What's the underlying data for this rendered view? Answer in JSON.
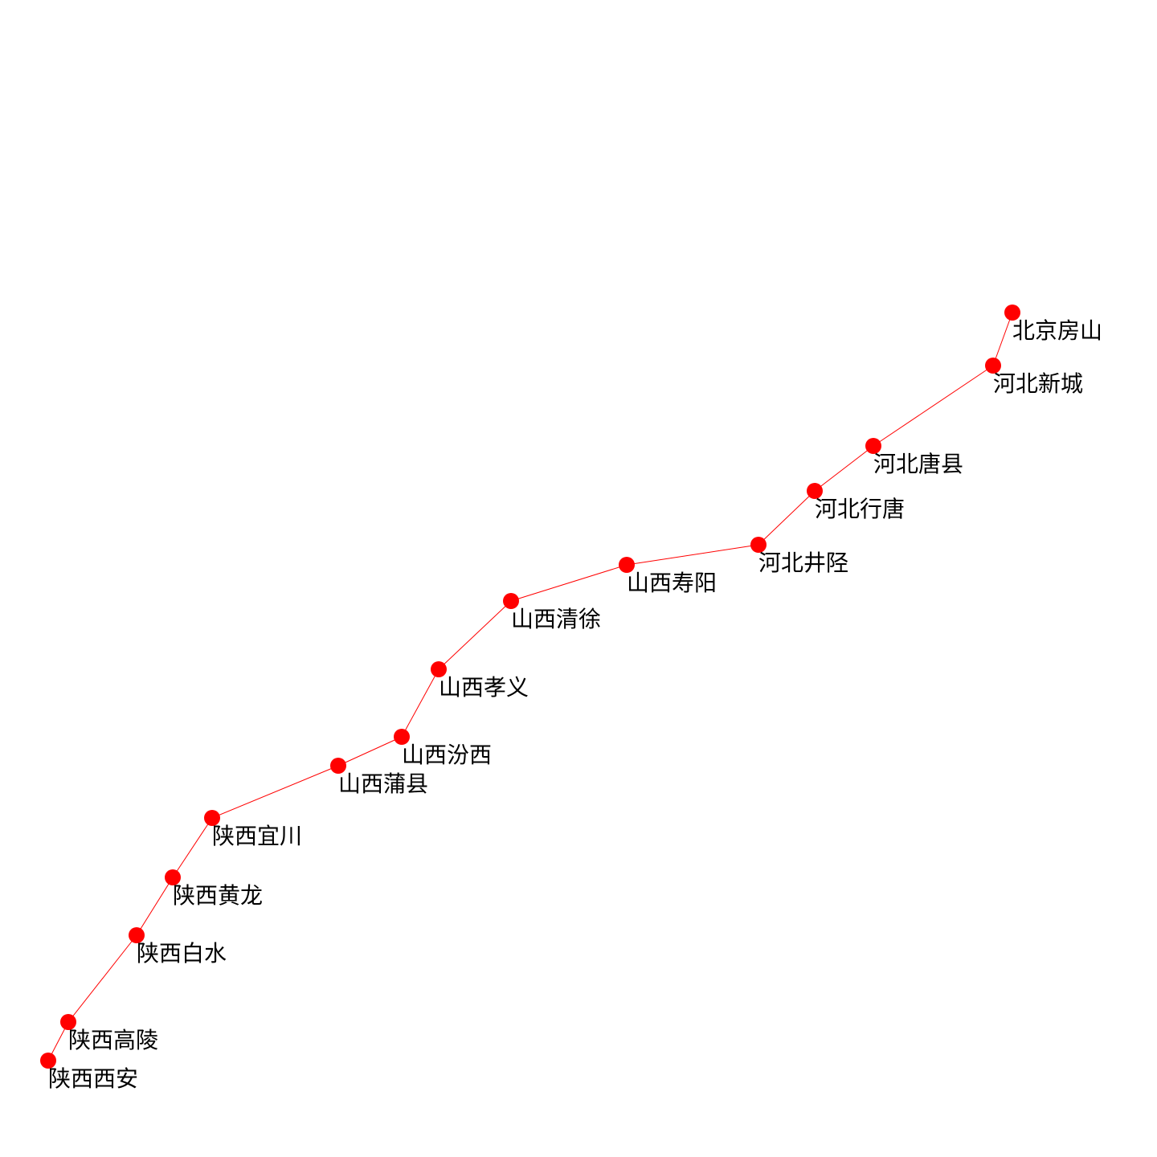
{
  "map": {
    "route_color": "#ff0000",
    "marker_color": "#ff0000",
    "label_color": "#000000",
    "background_color": "#ffffff",
    "stations": [
      {
        "id": "beijing-fangshan",
        "name": "北京房山"
      },
      {
        "id": "hebei-xincheng",
        "name": "河北新城"
      },
      {
        "id": "hebei-tangxian",
        "name": "河北唐县"
      },
      {
        "id": "hebei-xingtang",
        "name": "河北行唐"
      },
      {
        "id": "hebei-jingxing",
        "name": "河北井陉"
      },
      {
        "id": "shanxi-shouyang",
        "name": "山西寿阳"
      },
      {
        "id": "shanxi-qingxu",
        "name": "山西清徐"
      },
      {
        "id": "shanxi-xiaoyi",
        "name": "山西孝义"
      },
      {
        "id": "shanxi-fenxi",
        "name": "山西汾西"
      },
      {
        "id": "shanxi-puxian",
        "name": "山西蒲县"
      },
      {
        "id": "shaanxi-yichuan",
        "name": "陕西宜川"
      },
      {
        "id": "shaanxi-huanglong",
        "name": "陕西黄龙"
      },
      {
        "id": "shaanxi-baishui",
        "name": "陕西白水"
      },
      {
        "id": "shaanxi-gaoling",
        "name": "陕西高陵"
      },
      {
        "id": "shaanxi-xian",
        "name": "陕西西安"
      }
    ]
  }
}
